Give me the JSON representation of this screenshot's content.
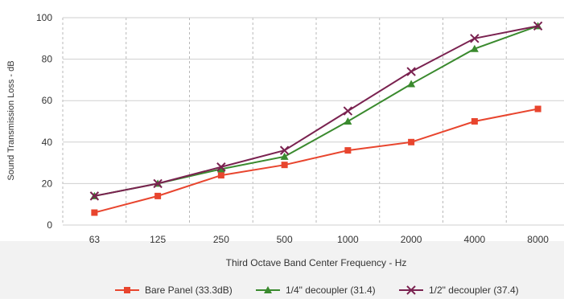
{
  "chart_data": {
    "type": "line",
    "title": "",
    "xlabel": "Third Octave Band Center Frequency - Hz",
    "ylabel": "Sound Transmission Loss - dB",
    "categories": [
      "63",
      "125",
      "250",
      "500",
      "1000",
      "2000",
      "4000",
      "8000"
    ],
    "ylim": [
      0,
      100
    ],
    "yticks": [
      "0",
      "20",
      "40",
      "60",
      "80",
      "100"
    ],
    "grid": {
      "vertical": "dashed",
      "horizontal": "solid"
    },
    "legend_position": "bottom",
    "series": [
      {
        "name": "Bare Panel (33.3dB)",
        "color": "#e8452e",
        "marker": "square",
        "values": [
          6,
          14,
          24,
          29,
          36,
          40,
          50,
          56
        ]
      },
      {
        "name": "1/4\" decoupler (31.4)",
        "color": "#3a8a2e",
        "marker": "triangle",
        "values": [
          14,
          20,
          27,
          33,
          50,
          68,
          85,
          96
        ]
      },
      {
        "name": "1/2\" decoupler (37.4)",
        "color": "#7a2250",
        "marker": "x",
        "values": [
          14,
          20,
          28,
          36,
          55,
          74,
          90,
          96
        ]
      }
    ]
  }
}
